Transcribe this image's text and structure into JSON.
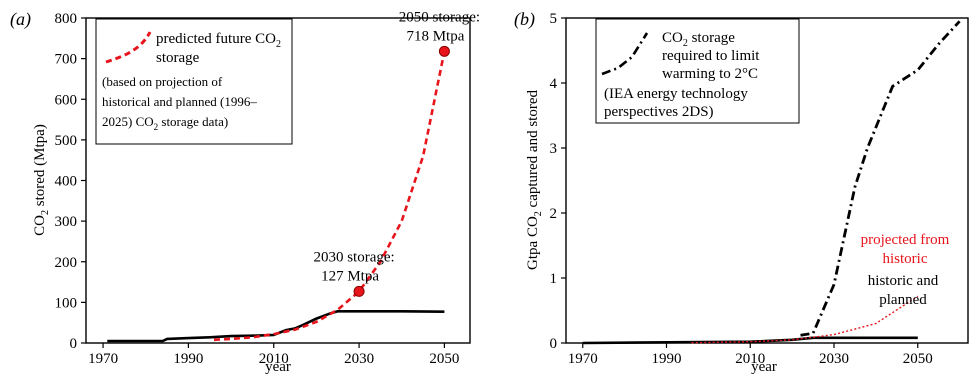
{
  "chart_data": [
    {
      "panel_label": "(a)",
      "type": "line",
      "xlabel": "year",
      "ylabel": "CO2 stored (Mtpa)",
      "xlim": [
        1966,
        2056
      ],
      "ylim": [
        0,
        800
      ],
      "xticks": [
        1970,
        1990,
        2010,
        2030,
        2050
      ],
      "yticks": [
        0,
        100,
        200,
        300,
        400,
        500,
        600,
        700,
        800
      ],
      "grid": false,
      "legend_position": "top-left",
      "legend": {
        "entry": "predicted future CO2 storage",
        "note": "(based on projection of historical and planned (1996–2025) CO2 storage data)"
      },
      "series": [
        {
          "role": "historical-and-planned",
          "color": "#000000",
          "style": "solid",
          "x": [
            1971,
            1984,
            1985,
            1990,
            1995,
            2000,
            2005,
            2010,
            2013,
            2015,
            2017,
            2020,
            2023,
            2025,
            2030,
            2040,
            2050
          ],
          "y": [
            5,
            5,
            10,
            12,
            14,
            17,
            18,
            20,
            32,
            36,
            45,
            60,
            72,
            78,
            78,
            78,
            77
          ]
        },
        {
          "name": "predicted future CO2 storage",
          "role": "projection",
          "color": "#e8141c",
          "style": "dashed",
          "x": [
            1996,
            2000,
            2005,
            2010,
            2015,
            2020,
            2025,
            2030,
            2035,
            2040,
            2045,
            2050
          ],
          "y": [
            8,
            10,
            14,
            22,
            33,
            52,
            82,
            127,
            200,
            300,
            460,
            718
          ]
        }
      ],
      "annotations": [
        {
          "x": 2030,
          "y": 127,
          "line1": "2030 storage:",
          "line2": "127 Mtpa"
        },
        {
          "x": 2050,
          "y": 718,
          "line1": "2050 storage:",
          "line2": "718 Mtpa"
        }
      ]
    },
    {
      "panel_label": "(b)",
      "type": "line",
      "xlabel": "year",
      "ylabel": "Gtpa CO2 captured and stored",
      "xlim": [
        1966,
        2062
      ],
      "ylim": [
        0,
        5
      ],
      "xticks": [
        1970,
        1990,
        2010,
        2030,
        2050
      ],
      "yticks": [
        0,
        1,
        2,
        3,
        4,
        5
      ],
      "grid": false,
      "legend_position": "top-left",
      "legend": {
        "entry": "CO2 storage required to limit warming to 2°C",
        "note": "(IEA energy technology perspectives 2DS)"
      },
      "series": [
        {
          "role": "historic-and-planned",
          "label": "historic and planned",
          "color": "#000000",
          "style": "solid",
          "x": [
            1970,
            2010,
            2020,
            2025,
            2035,
            2050
          ],
          "y": [
            0,
            0.02,
            0.05,
            0.08,
            0.08,
            0.08
          ]
        },
        {
          "role": "projected",
          "label": "projected from historic",
          "color": "#e8141c",
          "style": "dotted",
          "x": [
            1996,
            2010,
            2020,
            2030,
            2040,
            2050
          ],
          "y": [
            0.005,
            0.02,
            0.05,
            0.13,
            0.3,
            0.72
          ]
        },
        {
          "role": "iea-2ds",
          "label": "CO2 storage required to limit warming to 2°C",
          "color": "#000000",
          "style": "dash-dot",
          "x": [
            2022,
            2025,
            2030,
            2035,
            2038,
            2044,
            2050,
            2055,
            2060
          ],
          "y": [
            0.12,
            0.15,
            0.9,
            2.4,
            3.0,
            3.95,
            4.2,
            4.6,
            4.95
          ]
        }
      ],
      "series_labels": {
        "projected_line1": "projected from",
        "projected_line2": "historic",
        "historic_line1": "historic and",
        "historic_line2": "planned"
      }
    }
  ],
  "text": {
    "a_label": "(a)",
    "a_ylabel_pre": "CO",
    "a_ylabel_sub": "2",
    "a_ylabel_post": " stored (Mtpa)",
    "a_legend_1_pre": "predicted future CO",
    "a_legend_1_sub": "2",
    "a_legend_2": "storage",
    "a_note_1": "(based on projection of",
    "a_note_2": "historical and planned (1996–",
    "a_note_3_pre": "2025) CO",
    "a_note_3_sub": "2",
    "a_note_3_post": " storage data)",
    "b_label": "(b)",
    "b_ylabel_pre": "Gtpa CO",
    "b_ylabel_sub": "2",
    "b_ylabel_post": " captured and stored",
    "b_legend_1_pre": "CO",
    "b_legend_1_sub": "2",
    "b_legend_1_post": " storage",
    "b_legend_2": "required to limit",
    "b_legend_3": "warming to 2°C",
    "b_note_1": "(IEA energy technology",
    "b_note_2": "perspectives 2DS)",
    "xlabel": "year"
  }
}
